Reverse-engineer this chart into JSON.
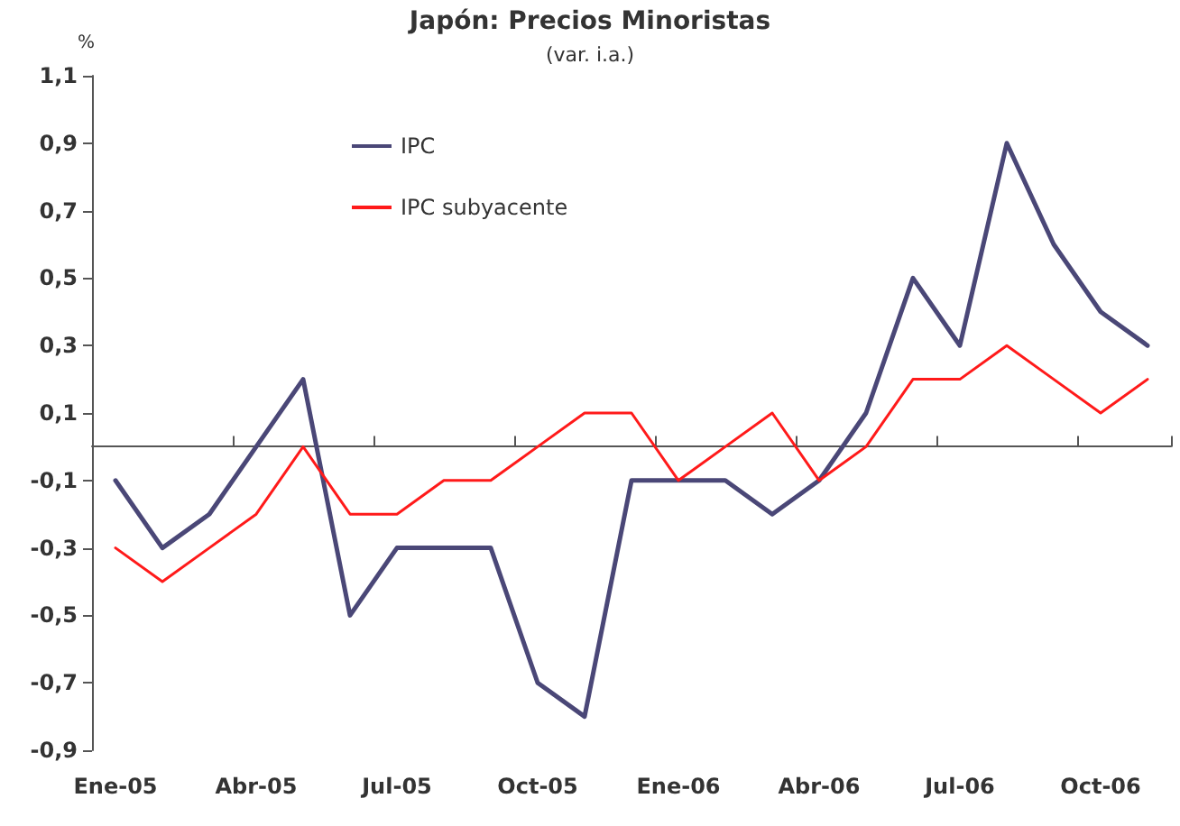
{
  "chart_data": {
    "type": "line",
    "title": "Japón: Precios Minoristas",
    "subtitle": "(var. i.a.)",
    "ylabel": "%",
    "categories": [
      "Ene-05",
      null,
      null,
      "Abr-05",
      null,
      null,
      "Jul-05",
      null,
      null,
      "Oct-05",
      null,
      null,
      "Ene-06",
      null,
      null,
      "Abr-06",
      null,
      null,
      "Jul-06",
      null,
      null,
      "Oct-06",
      null
    ],
    "series": [
      {
        "name": "IPC",
        "color": "#4a4777",
        "values": [
          -0.1,
          -0.3,
          -0.2,
          0.0,
          0.2,
          -0.5,
          -0.3,
          -0.3,
          -0.3,
          -0.7,
          -0.8,
          -0.1,
          -0.1,
          -0.1,
          -0.2,
          -0.1,
          0.1,
          0.5,
          0.3,
          0.9,
          0.6,
          0.4,
          0.3
        ]
      },
      {
        "name": "IPC subyacente",
        "color": "#ff1a1a",
        "values": [
          -0.3,
          -0.4,
          -0.3,
          -0.2,
          0.0,
          -0.2,
          -0.2,
          -0.1,
          -0.1,
          0.0,
          0.1,
          0.1,
          -0.1,
          0.0,
          0.1,
          -0.1,
          0.0,
          0.2,
          0.2,
          0.3,
          0.2,
          0.1,
          0.2
        ]
      }
    ],
    "ylim": [
      -0.9,
      1.1
    ],
    "yticks": [
      {
        "value": -0.9,
        "label": "-0,9"
      },
      {
        "value": -0.7,
        "label": "-0,7"
      },
      {
        "value": -0.5,
        "label": "-0,5"
      },
      {
        "value": -0.3,
        "label": "-0,3"
      },
      {
        "value": -0.1,
        "label": "-0,1"
      },
      {
        "value": 0.1,
        "label": "0,1"
      },
      {
        "value": 0.3,
        "label": "0,3"
      },
      {
        "value": 0.5,
        "label": "0,5"
      },
      {
        "value": 0.7,
        "label": "0,7"
      },
      {
        "value": 0.9,
        "label": "0,9"
      },
      {
        "value": 1.1,
        "label": "1,1"
      }
    ],
    "grid": false,
    "legend": "top left",
    "marker": "none",
    "line_style": "solid"
  }
}
